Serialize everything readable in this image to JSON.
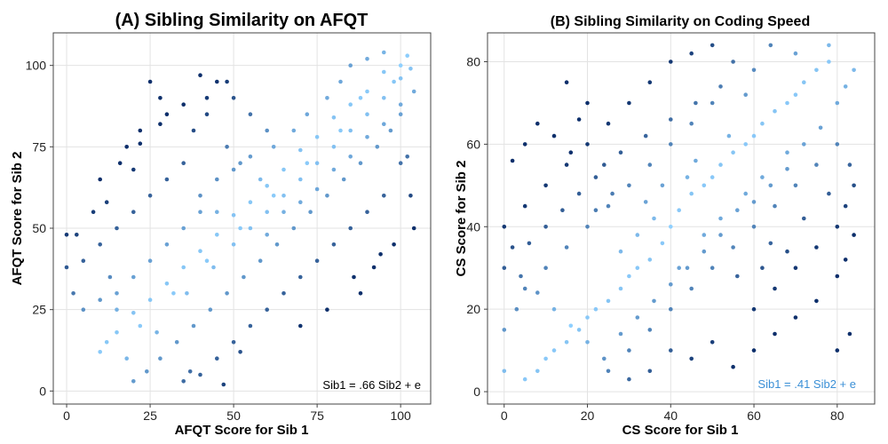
{
  "chart_data": [
    {
      "type": "scatter",
      "title": "(A) Sibling Similarity on AFQT",
      "xlabel": "AFQT Score for Sib 1",
      "ylabel": "AFQT Score for Sib 2",
      "xlim": [
        -4,
        109
      ],
      "ylim": [
        -4,
        110
      ],
      "xticks": [
        0,
        25,
        50,
        75,
        100
      ],
      "yticks": [
        0,
        25,
        50,
        75,
        100
      ],
      "grid": true,
      "annotation": {
        "text": "Sib1 = .66 Sib2 + e",
        "color": "#000000"
      },
      "point_color_range": [
        "#0d2f6b",
        "#8fd0ff"
      ],
      "points": [
        [
          95,
          98
        ],
        [
          100,
          100
        ],
        [
          102,
          103
        ],
        [
          98,
          95
        ],
        [
          90,
          92
        ],
        [
          85,
          88
        ],
        [
          88,
          90
        ],
        [
          80,
          84
        ],
        [
          82,
          80
        ],
        [
          75,
          78
        ],
        [
          70,
          74
        ],
        [
          72,
          70
        ],
        [
          65,
          68
        ],
        [
          60,
          63
        ],
        [
          62,
          60
        ],
        [
          55,
          58
        ],
        [
          50,
          54
        ],
        [
          52,
          50
        ],
        [
          45,
          48
        ],
        [
          40,
          43
        ],
        [
          42,
          40
        ],
        [
          35,
          38
        ],
        [
          30,
          33
        ],
        [
          32,
          30
        ],
        [
          25,
          28
        ],
        [
          20,
          24
        ],
        [
          22,
          20
        ],
        [
          15,
          18
        ],
        [
          12,
          15
        ],
        [
          10,
          12
        ],
        [
          95,
          60
        ],
        [
          90,
          55
        ],
        [
          85,
          50
        ],
        [
          80,
          45
        ],
        [
          75,
          40
        ],
        [
          70,
          35
        ],
        [
          65,
          30
        ],
        [
          60,
          25
        ],
        [
          55,
          20
        ],
        [
          50,
          15
        ],
        [
          45,
          10
        ],
        [
          40,
          5
        ],
        [
          35,
          3
        ],
        [
          100,
          70
        ],
        [
          98,
          45
        ],
        [
          92,
          38
        ],
        [
          88,
          30
        ],
        [
          60,
          80
        ],
        [
          55,
          85
        ],
        [
          50,
          90
        ],
        [
          45,
          95
        ],
        [
          40,
          97
        ],
        [
          30,
          85
        ],
        [
          28,
          90
        ],
        [
          25,
          95
        ],
        [
          35,
          70
        ],
        [
          30,
          65
        ],
        [
          25,
          60
        ],
        [
          20,
          55
        ],
        [
          15,
          50
        ],
        [
          10,
          45
        ],
        [
          5,
          40
        ],
        [
          12,
          58
        ],
        [
          8,
          55
        ],
        [
          3,
          48
        ],
        [
          0,
          38
        ],
        [
          2,
          30
        ],
        [
          5,
          25
        ],
        [
          0,
          48
        ],
        [
          18,
          75
        ],
        [
          22,
          80
        ],
        [
          20,
          68
        ],
        [
          38,
          80
        ],
        [
          42,
          85
        ],
        [
          48,
          75
        ],
        [
          52,
          70
        ],
        [
          58,
          65
        ],
        [
          62,
          75
        ],
        [
          68,
          80
        ],
        [
          72,
          85
        ],
        [
          78,
          90
        ],
        [
          82,
          95
        ],
        [
          85,
          100
        ],
        [
          90,
          102
        ],
        [
          95,
          104
        ],
        [
          100,
          96
        ],
        [
          103,
          99
        ],
        [
          104,
          92
        ],
        [
          100,
          88
        ],
        [
          97,
          80
        ],
        [
          93,
          75
        ],
        [
          88,
          70
        ],
        [
          83,
          65
        ],
        [
          78,
          60
        ],
        [
          73,
          55
        ],
        [
          68,
          50
        ],
        [
          63,
          45
        ],
        [
          58,
          40
        ],
        [
          53,
          35
        ],
        [
          48,
          30
        ],
        [
          43,
          25
        ],
        [
          38,
          20
        ],
        [
          33,
          15
        ],
        [
          28,
          10
        ],
        [
          24,
          6
        ],
        [
          20,
          3
        ],
        [
          18,
          10
        ],
        [
          15,
          25
        ],
        [
          13,
          35
        ],
        [
          10,
          28
        ],
        [
          40,
          60
        ],
        [
          45,
          65
        ],
        [
          50,
          68
        ],
        [
          55,
          72
        ],
        [
          60,
          55
        ],
        [
          65,
          60
        ],
        [
          70,
          65
        ],
        [
          75,
          70
        ],
        [
          80,
          75
        ],
        [
          85,
          80
        ],
        [
          90,
          85
        ],
        [
          95,
          90
        ],
        [
          35,
          50
        ],
        [
          40,
          55
        ],
        [
          30,
          45
        ],
        [
          25,
          40
        ],
        [
          20,
          35
        ],
        [
          15,
          30
        ],
        [
          45,
          55
        ],
        [
          50,
          45
        ],
        [
          55,
          50
        ],
        [
          60,
          48
        ],
        [
          65,
          55
        ],
        [
          70,
          58
        ],
        [
          75,
          62
        ],
        [
          80,
          68
        ],
        [
          85,
          72
        ],
        [
          90,
          78
        ],
        [
          95,
          82
        ],
        [
          100,
          85
        ],
        [
          47,
          2
        ],
        [
          37,
          6
        ],
        [
          52,
          12
        ],
        [
          27,
          18
        ],
        [
          70,
          20
        ],
        [
          78,
          25
        ],
        [
          86,
          35
        ],
        [
          94,
          42
        ],
        [
          104,
          50
        ],
        [
          103,
          60
        ],
        [
          102,
          72
        ],
        [
          48,
          95
        ],
        [
          42,
          90
        ],
        [
          35,
          88
        ],
        [
          28,
          82
        ],
        [
          22,
          76
        ],
        [
          16,
          70
        ],
        [
          10,
          65
        ],
        [
          36,
          30
        ],
        [
          44,
          38
        ]
      ]
    },
    {
      "type": "scatter",
      "title": "(B) Sibling Similarity on Coding Speed",
      "xlabel": "CS Score for Sib 1",
      "ylabel": "CS Score for Sib 2",
      "xlim": [
        -4,
        89
      ],
      "ylim": [
        -3,
        87
      ],
      "xticks": [
        0,
        20,
        40,
        60,
        80
      ],
      "yticks": [
        0,
        20,
        40,
        60,
        80
      ],
      "grid": true,
      "annotation": {
        "text": "Sib1 = .41 Sib2 + e",
        "color": "#3a8fd6"
      },
      "point_color_range": [
        "#0d2f6b",
        "#8fd0ff"
      ],
      "points": [
        [
          40,
          40
        ],
        [
          42,
          44
        ],
        [
          38,
          36
        ],
        [
          45,
          48
        ],
        [
          35,
          32
        ],
        [
          48,
          50
        ],
        [
          32,
          30
        ],
        [
          50,
          52
        ],
        [
          30,
          28
        ],
        [
          52,
          55
        ],
        [
          28,
          25
        ],
        [
          55,
          58
        ],
        [
          25,
          22
        ],
        [
          58,
          60
        ],
        [
          22,
          20
        ],
        [
          60,
          62
        ],
        [
          20,
          18
        ],
        [
          62,
          65
        ],
        [
          18,
          15
        ],
        [
          65,
          68
        ],
        [
          15,
          12
        ],
        [
          68,
          70
        ],
        [
          12,
          10
        ],
        [
          70,
          72
        ],
        [
          10,
          8
        ],
        [
          72,
          75
        ],
        [
          8,
          5
        ],
        [
          75,
          78
        ],
        [
          5,
          3
        ],
        [
          78,
          80
        ],
        [
          40,
          60
        ],
        [
          45,
          65
        ],
        [
          50,
          70
        ],
        [
          35,
          55
        ],
        [
          30,
          50
        ],
        [
          25,
          45
        ],
        [
          20,
          40
        ],
        [
          15,
          35
        ],
        [
          10,
          30
        ],
        [
          5,
          25
        ],
        [
          60,
          40
        ],
        [
          65,
          45
        ],
        [
          70,
          50
        ],
        [
          75,
          55
        ],
        [
          80,
          60
        ],
        [
          55,
          35
        ],
        [
          50,
          30
        ],
        [
          45,
          25
        ],
        [
          40,
          20
        ],
        [
          35,
          15
        ],
        [
          30,
          10
        ],
        [
          25,
          5
        ],
        [
          60,
          20
        ],
        [
          65,
          25
        ],
        [
          70,
          30
        ],
        [
          75,
          35
        ],
        [
          80,
          40
        ],
        [
          82,
          45
        ],
        [
          84,
          50
        ],
        [
          83,
          55
        ],
        [
          20,
          60
        ],
        [
          15,
          55
        ],
        [
          10,
          50
        ],
        [
          5,
          45
        ],
        [
          0,
          40
        ],
        [
          2,
          35
        ],
        [
          0,
          30
        ],
        [
          3,
          20
        ],
        [
          0,
          15
        ],
        [
          0,
          5
        ],
        [
          30,
          70
        ],
        [
          35,
          75
        ],
        [
          40,
          80
        ],
        [
          45,
          82
        ],
        [
          50,
          84
        ],
        [
          55,
          80
        ],
        [
          60,
          78
        ],
        [
          25,
          65
        ],
        [
          20,
          70
        ],
        [
          15,
          75
        ],
        [
          42,
          30
        ],
        [
          48,
          38
        ],
        [
          52,
          42
        ],
        [
          58,
          48
        ],
        [
          62,
          52
        ],
        [
          68,
          58
        ],
        [
          36,
          42
        ],
        [
          32,
          38
        ],
        [
          28,
          34
        ],
        [
          44,
          52
        ],
        [
          38,
          50
        ],
        [
          34,
          46
        ],
        [
          46,
          56
        ],
        [
          54,
          62
        ],
        [
          64,
          36
        ],
        [
          72,
          42
        ],
        [
          78,
          48
        ],
        [
          56,
          28
        ],
        [
          62,
          30
        ],
        [
          68,
          34
        ],
        [
          40,
          10
        ],
        [
          45,
          8
        ],
        [
          50,
          12
        ],
        [
          55,
          6
        ],
        [
          35,
          5
        ],
        [
          30,
          3
        ],
        [
          60,
          10
        ],
        [
          65,
          14
        ],
        [
          70,
          18
        ],
        [
          75,
          22
        ],
        [
          80,
          28
        ],
        [
          82,
          32
        ],
        [
          84,
          38
        ],
        [
          80,
          10
        ],
        [
          83,
          14
        ],
        [
          5,
          60
        ],
        [
          8,
          65
        ],
        [
          2,
          56
        ],
        [
          12,
          62
        ],
        [
          18,
          66
        ],
        [
          24,
          55
        ],
        [
          26,
          48
        ],
        [
          22,
          44
        ],
        [
          18,
          48
        ],
        [
          14,
          44
        ],
        [
          10,
          40
        ],
        [
          6,
          36
        ],
        [
          4,
          28
        ],
        [
          8,
          24
        ],
        [
          12,
          20
        ],
        [
          16,
          16
        ],
        [
          20,
          12
        ],
        [
          24,
          8
        ],
        [
          28,
          14
        ],
        [
          32,
          18
        ],
        [
          36,
          22
        ],
        [
          40,
          26
        ],
        [
          44,
          30
        ],
        [
          48,
          34
        ],
        [
          52,
          38
        ],
        [
          56,
          44
        ],
        [
          60,
          46
        ],
        [
          64,
          50
        ],
        [
          68,
          54
        ],
        [
          72,
          60
        ],
        [
          76,
          64
        ],
        [
          80,
          70
        ],
        [
          82,
          74
        ],
        [
          84,
          78
        ],
        [
          78,
          84
        ],
        [
          70,
          82
        ],
        [
          64,
          84
        ],
        [
          58,
          72
        ],
        [
          52,
          74
        ],
        [
          46,
          70
        ],
        [
          40,
          66
        ],
        [
          34,
          62
        ],
        [
          28,
          58
        ],
        [
          22,
          52
        ],
        [
          16,
          58
        ]
      ]
    }
  ]
}
